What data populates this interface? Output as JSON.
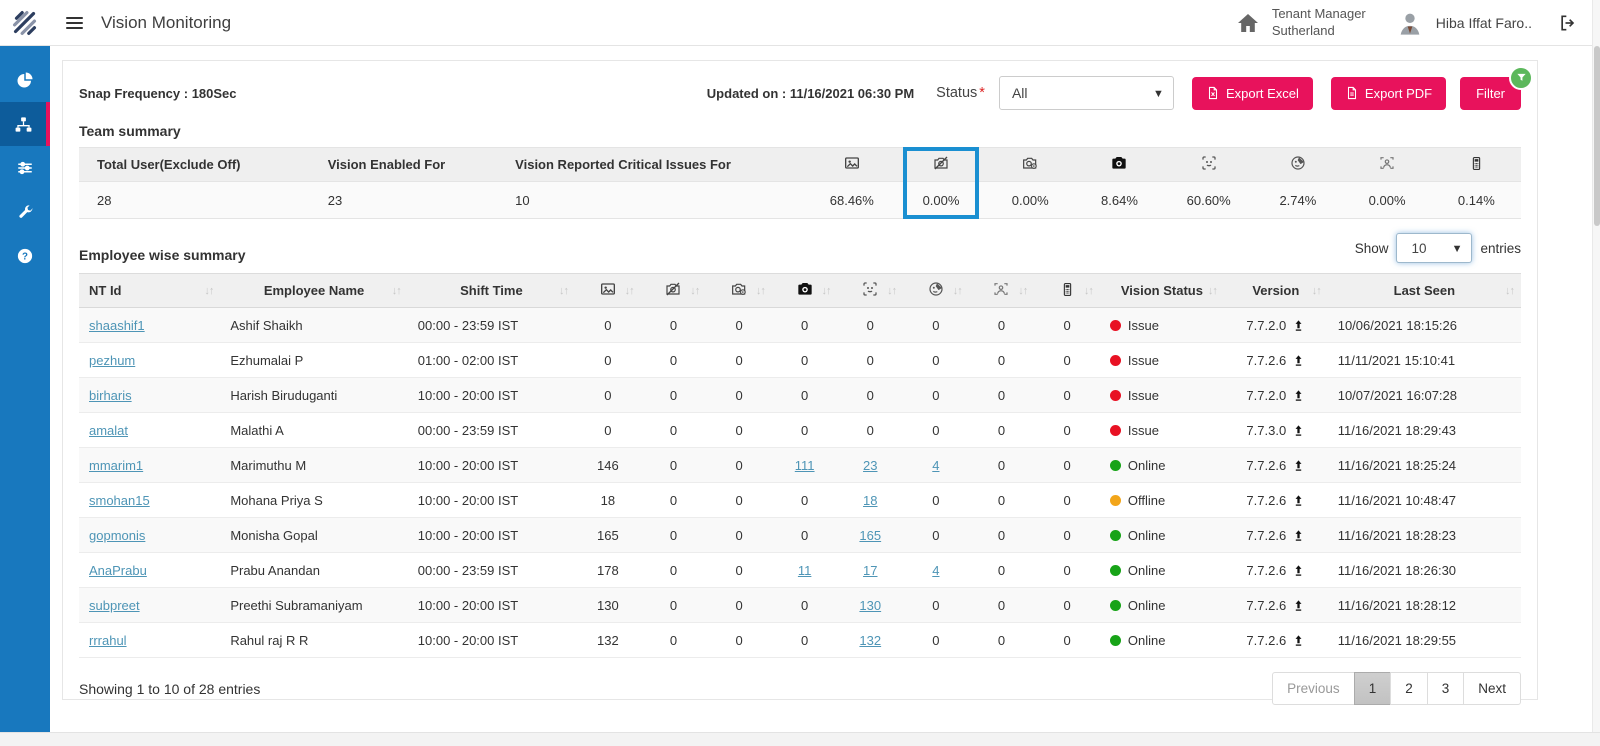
{
  "colors": {
    "accent": "#e8125c",
    "sidebar": "#1878be",
    "highlight_box": "#1a8fd1",
    "link": "#4e95b6",
    "status": {
      "Issue": "#e81123",
      "Online": "#17a317",
      "Offline": "#f2a51a"
    }
  },
  "navbar": {
    "title": "Vision Monitoring",
    "tenant_label": "Tenant Manager",
    "tenant_name": "Sutherland",
    "user_name": "Hiba Iffat Faro..",
    "icons": [
      "menu-icon",
      "home-icon",
      "user-avatar-icon",
      "logout-icon"
    ]
  },
  "sidebar": {
    "items": [
      {
        "icon": "pie-chart-icon",
        "active": false
      },
      {
        "icon": "sitemap-icon",
        "active": true
      },
      {
        "icon": "sliders-icon",
        "active": false
      },
      {
        "icon": "wrench-icon",
        "active": false
      },
      {
        "icon": "help-icon",
        "active": false
      }
    ]
  },
  "toolbar": {
    "snap_frequency": "Snap Frequency : 180Sec",
    "updated_on": "Updated on : 11/16/2021 06:30 PM",
    "status_label": "Status",
    "status_required": "*",
    "status_value": "All",
    "export_excel_label": "Export Excel",
    "export_pdf_label": "Export PDF",
    "filter_label": "Filter"
  },
  "team_summary": {
    "heading": "Team summary",
    "text_columns": [
      "Total User(Exclude Off)",
      "Vision Enabled For",
      "Vision Reported Critical Issues For"
    ],
    "text_values": [
      "28",
      "23",
      "10"
    ],
    "icon_columns": [
      "image-icon",
      "camera-off-icon",
      "camera-info-icon",
      "camera-icon",
      "face-scan-icon",
      "face-covered-icon",
      "people-icon",
      "mobile-icon"
    ],
    "icon_values": [
      "68.46%",
      "0.00%",
      "0.00%",
      "8.64%",
      "60.60%",
      "2.74%",
      "0.00%",
      "0.14%"
    ],
    "highlighted_column_index": 1
  },
  "table_controls": {
    "show_label": "Show",
    "page_size": "10",
    "entries_label": "entries"
  },
  "employee_table": {
    "heading": "Employee wise summary",
    "text_headers": [
      "NT Id",
      "Employee Name",
      "Shift Time"
    ],
    "icon_headers": [
      "image-icon",
      "camera-off-icon",
      "camera-info-icon",
      "camera-icon",
      "face-scan-icon",
      "face-covered-icon",
      "people-icon",
      "mobile-icon"
    ],
    "tail_headers": [
      "Vision Status",
      "Version",
      "Last Seen"
    ],
    "rows": [
      {
        "nt_id": "shaashif1",
        "name": "Ashif Shaikh",
        "shift": "00:00 - 23:59 IST",
        "counts": [
          "0",
          "0",
          "0",
          "0",
          "0",
          "0",
          "0",
          "0"
        ],
        "link_cols": [],
        "status": "Issue",
        "version": "7.7.2.0",
        "last_seen": "10/06/2021 18:15:26"
      },
      {
        "nt_id": "pezhum",
        "name": "Ezhumalai P",
        "shift": "01:00 - 02:00 IST",
        "counts": [
          "0",
          "0",
          "0",
          "0",
          "0",
          "0",
          "0",
          "0"
        ],
        "link_cols": [],
        "status": "Issue",
        "version": "7.7.2.6",
        "last_seen": "11/11/2021 15:10:41"
      },
      {
        "nt_id": "birharis",
        "name": "Harish Biruduganti",
        "shift": "10:00 - 20:00 IST",
        "counts": [
          "0",
          "0",
          "0",
          "0",
          "0",
          "0",
          "0",
          "0"
        ],
        "link_cols": [],
        "status": "Issue",
        "version": "7.7.2.0",
        "last_seen": "10/07/2021 16:07:28"
      },
      {
        "nt_id": "amalat",
        "name": "Malathi A",
        "shift": "00:00 - 23:59 IST",
        "counts": [
          "0",
          "0",
          "0",
          "0",
          "0",
          "0",
          "0",
          "0"
        ],
        "link_cols": [],
        "status": "Issue",
        "version": "7.7.3.0",
        "last_seen": "11/16/2021 18:29:43"
      },
      {
        "nt_id": "mmarim1",
        "name": "Marimuthu M",
        "shift": "10:00 - 20:00 IST",
        "counts": [
          "146",
          "0",
          "0",
          "111",
          "23",
          "4",
          "0",
          "0"
        ],
        "link_cols": [
          3,
          4,
          5
        ],
        "status": "Online",
        "version": "7.7.2.6",
        "last_seen": "11/16/2021 18:25:24"
      },
      {
        "nt_id": "smohan15",
        "name": "Mohana Priya S",
        "shift": "10:00 - 20:00 IST",
        "counts": [
          "18",
          "0",
          "0",
          "0",
          "18",
          "0",
          "0",
          "0"
        ],
        "link_cols": [
          4
        ],
        "status": "Offline",
        "version": "7.7.2.6",
        "last_seen": "11/16/2021 10:48:47"
      },
      {
        "nt_id": "gopmonis",
        "name": "Monisha Gopal",
        "shift": "10:00 - 20:00 IST",
        "counts": [
          "165",
          "0",
          "0",
          "0",
          "165",
          "0",
          "0",
          "0"
        ],
        "link_cols": [
          4
        ],
        "status": "Online",
        "version": "7.7.2.6",
        "last_seen": "11/16/2021 18:28:23"
      },
      {
        "nt_id": "AnaPrabu",
        "name": "Prabu Anandan",
        "shift": "00:00 - 23:59 IST",
        "counts": [
          "178",
          "0",
          "0",
          "11",
          "17",
          "4",
          "0",
          "0"
        ],
        "link_cols": [
          3,
          4,
          5
        ],
        "status": "Online",
        "version": "7.7.2.6",
        "last_seen": "11/16/2021 18:26:30"
      },
      {
        "nt_id": "subpreet",
        "name": "Preethi Subramaniyam",
        "shift": "10:00 - 20:00 IST",
        "counts": [
          "130",
          "0",
          "0",
          "0",
          "130",
          "0",
          "0",
          "0"
        ],
        "link_cols": [
          4
        ],
        "status": "Online",
        "version": "7.7.2.6",
        "last_seen": "11/16/2021 18:28:12"
      },
      {
        "nt_id": "rrrahul",
        "name": "Rahul raj R R",
        "shift": "10:00 - 20:00 IST",
        "counts": [
          "132",
          "0",
          "0",
          "0",
          "132",
          "0",
          "0",
          "0"
        ],
        "link_cols": [
          4
        ],
        "status": "Online",
        "version": "7.7.2.6",
        "last_seen": "11/16/2021 18:29:55"
      }
    ]
  },
  "footer": {
    "showing_text": "Showing 1 to 10 of 28 entries",
    "pagination": [
      "Previous",
      "1",
      "2",
      "3",
      "Next"
    ],
    "active_page": "1"
  }
}
